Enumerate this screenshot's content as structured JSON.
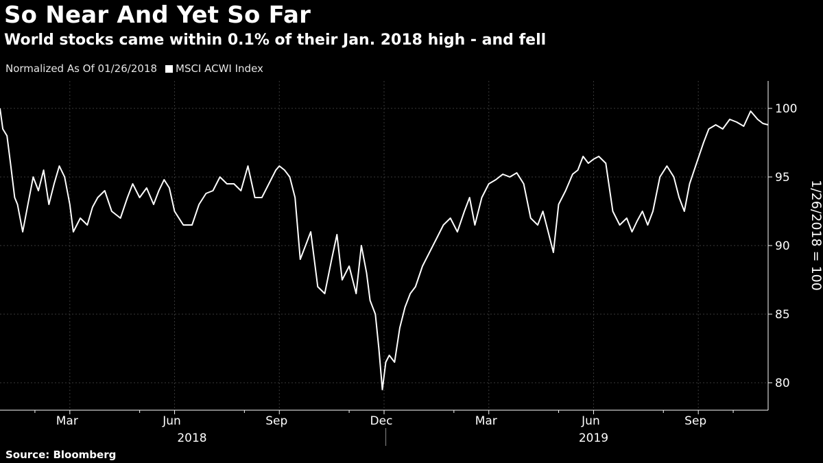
{
  "header": {
    "title": "So Near And Yet So Far",
    "subtitle": "World stocks came within 0.1% of their Jan. 2018 high - and fell"
  },
  "legend": {
    "normalized_note": "Normalized As Of 01/26/2018",
    "series_label": "MSCI ACWI Index"
  },
  "footer": {
    "source": "Source: Bloomberg"
  },
  "colors": {
    "background": "#000000",
    "line": "#ffffff",
    "grid": "#3a3a3a"
  },
  "chart_data": {
    "type": "line",
    "title": "So Near And Yet So Far",
    "subtitle": "World stocks came within 0.1% of their Jan. 2018 high - and fell",
    "ylabel": "1/26/2018 = 100",
    "xlabel": "",
    "ylim": [
      78,
      102
    ],
    "xlim": [
      0,
      22
    ],
    "yticks": [
      80,
      85,
      90,
      95,
      100
    ],
    "ytick_labels": [
      "80",
      "85",
      "90",
      "95",
      "100"
    ],
    "month_ticks": [
      {
        "x": 2,
        "label": "Mar"
      },
      {
        "x": 5,
        "label": "Jun"
      },
      {
        "x": 8,
        "label": "Sep"
      },
      {
        "x": 11,
        "label": "Dec"
      },
      {
        "x": 14,
        "label": "Mar"
      },
      {
        "x": 17,
        "label": "Jun"
      },
      {
        "x": 20,
        "label": "Sep"
      }
    ],
    "minor_ticks": [
      1,
      4,
      7,
      10,
      13,
      16,
      19,
      21
    ],
    "year_labels": [
      {
        "center": 5.5,
        "label": "2018"
      },
      {
        "center": 17.0,
        "label": "2019"
      }
    ],
    "year_divider_x": 11.05,
    "grid": true,
    "legend_position": "top-left",
    "series": [
      {
        "name": "MSCI ACWI Index",
        "x": [
          0,
          0.08,
          0.2,
          0.3,
          0.42,
          0.5,
          0.65,
          0.8,
          0.95,
          1.1,
          1.25,
          1.4,
          1.55,
          1.7,
          1.85,
          2.0,
          2.1,
          2.3,
          2.5,
          2.65,
          2.8,
          3.0,
          3.2,
          3.45,
          3.65,
          3.8,
          4.0,
          4.2,
          4.4,
          4.55,
          4.7,
          4.85,
          5.0,
          5.25,
          5.5,
          5.7,
          5.9,
          6.1,
          6.3,
          6.5,
          6.7,
          6.9,
          7.1,
          7.3,
          7.5,
          7.7,
          7.9,
          8.0,
          8.15,
          8.3,
          8.45,
          8.6,
          8.75,
          8.9,
          9.1,
          9.3,
          9.5,
          9.65,
          9.8,
          10.0,
          10.2,
          10.35,
          10.5,
          10.6,
          10.75,
          10.85,
          10.95,
          11.05,
          11.15,
          11.3,
          11.45,
          11.6,
          11.75,
          11.9,
          12.1,
          12.3,
          12.5,
          12.7,
          12.9,
          13.1,
          13.3,
          13.45,
          13.6,
          13.8,
          14.0,
          14.2,
          14.4,
          14.6,
          14.8,
          15.0,
          15.2,
          15.4,
          15.55,
          15.7,
          15.85,
          16.0,
          16.2,
          16.4,
          16.55,
          16.7,
          16.85,
          17.0,
          17.15,
          17.35,
          17.55,
          17.75,
          17.95,
          18.1,
          18.25,
          18.4,
          18.55,
          18.7,
          18.9,
          19.1,
          19.3,
          19.45,
          19.6,
          19.75,
          19.95,
          20.15,
          20.3,
          20.5,
          20.7,
          20.9,
          21.1,
          21.3,
          21.5,
          21.7,
          21.85,
          22.0
        ],
        "values": [
          100.0,
          98.5,
          98.0,
          96.0,
          93.5,
          93.0,
          91.0,
          93.0,
          95.0,
          94.0,
          95.5,
          93.0,
          94.5,
          95.8,
          95.0,
          93.0,
          91.0,
          92.0,
          91.5,
          92.8,
          93.5,
          94.0,
          92.5,
          92.0,
          93.5,
          94.5,
          93.5,
          94.2,
          93.0,
          94.0,
          94.8,
          94.2,
          92.5,
          91.5,
          91.5,
          93.0,
          93.8,
          94.0,
          95.0,
          94.5,
          94.5,
          94.0,
          95.8,
          93.5,
          93.5,
          94.5,
          95.5,
          95.8,
          95.5,
          95.0,
          93.5,
          89.0,
          90.0,
          91.0,
          87.0,
          86.5,
          89.0,
          90.8,
          87.5,
          88.5,
          86.5,
          90.0,
          88.0,
          86.0,
          85.0,
          82.5,
          79.5,
          81.5,
          82.0,
          81.5,
          84.0,
          85.5,
          86.5,
          87.0,
          88.5,
          89.5,
          90.5,
          91.5,
          92.0,
          91.0,
          92.5,
          93.5,
          91.5,
          93.5,
          94.5,
          94.8,
          95.2,
          95.0,
          95.3,
          94.5,
          92.0,
          91.5,
          92.5,
          91.0,
          89.5,
          93.0,
          94.0,
          95.2,
          95.5,
          96.5,
          96.0,
          96.3,
          96.5,
          96.0,
          92.5,
          91.5,
          92.0,
          91.0,
          91.8,
          92.5,
          91.5,
          92.5,
          95.0,
          95.8,
          95.0,
          93.5,
          92.5,
          94.5,
          96.0,
          97.5,
          98.5,
          98.8,
          98.5,
          99.2,
          99.0,
          98.7,
          99.8,
          99.2,
          98.9,
          98.8
        ]
      }
    ]
  }
}
